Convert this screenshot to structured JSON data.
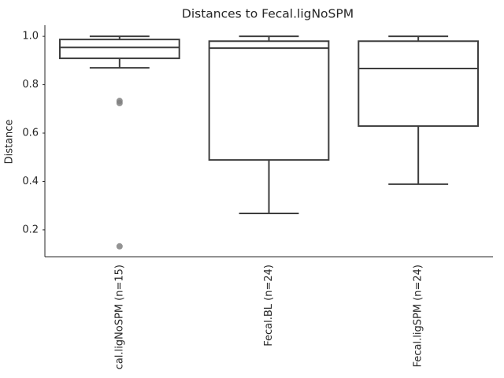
{
  "chart_data": {
    "type": "box",
    "title": "Distances to Fecal.ligNoSPM",
    "y_label": "Distance",
    "categories": [
      "cal.ligNoSPM (n=15)",
      "Fecal.BL (n=24)",
      "Fecal.ligSPM (n=24)"
    ],
    "boxes": [
      {
        "min": 0.87,
        "q1": 0.909,
        "median": 0.954,
        "q3": 0.987,
        "max": 1.0,
        "outliers": [
          0.733,
          0.724,
          0.132
        ]
      },
      {
        "min": 0.268,
        "q1": 0.489,
        "median": 0.951,
        "q3": 0.98,
        "max": 1.0,
        "outliers": []
      },
      {
        "min": 0.389,
        "q1": 0.629,
        "median": 0.867,
        "q3": 0.98,
        "max": 1.0,
        "outliers": []
      }
    ],
    "color": "#3d3d3d",
    "outlier_color": "#808080",
    "ylim": [
      0.089,
      1.046
    ],
    "yticks": [
      0.2,
      0.4,
      0.6,
      0.8,
      {
        "value": 1,
        "label": "1.0"
      }
    ],
    "grid": false
  }
}
